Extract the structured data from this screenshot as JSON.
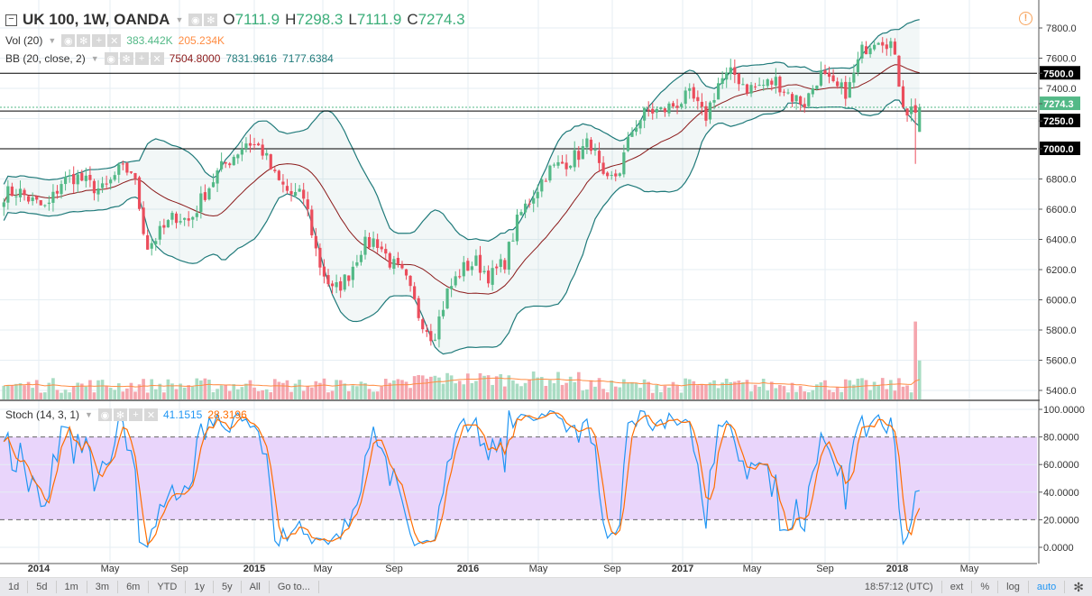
{
  "symbol": {
    "title": "UK 100, 1W, OANDA",
    "o_label": "O",
    "o": "7111.9",
    "h_label": "H",
    "h": "7298.3",
    "l_label": "L",
    "l": "7111.9",
    "c_label": "C",
    "c": "7274.3"
  },
  "volume": {
    "label": "Vol (20)",
    "value": "383.442K",
    "ma": "205.234K"
  },
  "bb": {
    "label": "BB (20, close, 2)",
    "basis": "7504.8000",
    "upper": "7831.9616",
    "lower": "7177.6384"
  },
  "stoch": {
    "label": "Stoch (14, 3, 1)",
    "k": "41.1515",
    "d": "28.3196",
    "axis": [
      "100.0000",
      "80.0000",
      "60.0000",
      "40.0000",
      "20.0000",
      "0.0000"
    ]
  },
  "price_axis": {
    "ticks": [
      "7800.0",
      "7600.0",
      "7400.0",
      "6800.0",
      "6600.0",
      "6400.0",
      "6200.0",
      "6000.0",
      "5800.0",
      "5600.0",
      "5400.0"
    ],
    "levels": [
      "7500.0",
      "7250.0",
      "7000.0"
    ],
    "last": "7274.3"
  },
  "time_axis": [
    "2014",
    "May",
    "Sep",
    "2015",
    "May",
    "Sep",
    "2016",
    "May",
    "Sep",
    "2017",
    "May",
    "Sep",
    "2018",
    "May"
  ],
  "toolbar": {
    "ranges": [
      "1d",
      "5d",
      "1m",
      "3m",
      "6m",
      "YTD",
      "1y",
      "5y",
      "All",
      "Go to..."
    ],
    "clock": "18:57:12 (UTC)",
    "ext": "ext",
    "pct": "%",
    "log": "log",
    "auto": "auto"
  },
  "colors": {
    "up": "#53b987",
    "down": "#eb4d5c",
    "bb": "#1f7a7a",
    "basis": "#8b1a1a",
    "stochK": "#2196f3",
    "stochD": "#ff6d00",
    "band": "#e9d5fb",
    "last": "#53b987"
  },
  "chart_data": {
    "type": "candlestick",
    "interval": "1W",
    "keypoints": [
      6700,
      6720,
      6650,
      6600,
      6780,
      6820,
      6760,
      6720,
      6850,
      6860,
      6350,
      6450,
      6560,
      6520,
      6700,
      6850,
      6950,
      7050,
      7000,
      6800,
      6700,
      6680,
      6250,
      6050,
      6150,
      6350,
      6400,
      6250,
      6150,
      5900,
      5750,
      6050,
      6200,
      6250,
      6150,
      6250,
      6550,
      6700,
      6850,
      6900,
      6950,
      7050,
      6750,
      6850,
      7150,
      7250,
      7250,
      7300,
      7350,
      7200,
      7450,
      7500,
      7400,
      7420,
      7450,
      7350,
      7300,
      7500,
      7400,
      7380,
      7650,
      7750,
      7700,
      7250,
      7274.3
    ]
  }
}
